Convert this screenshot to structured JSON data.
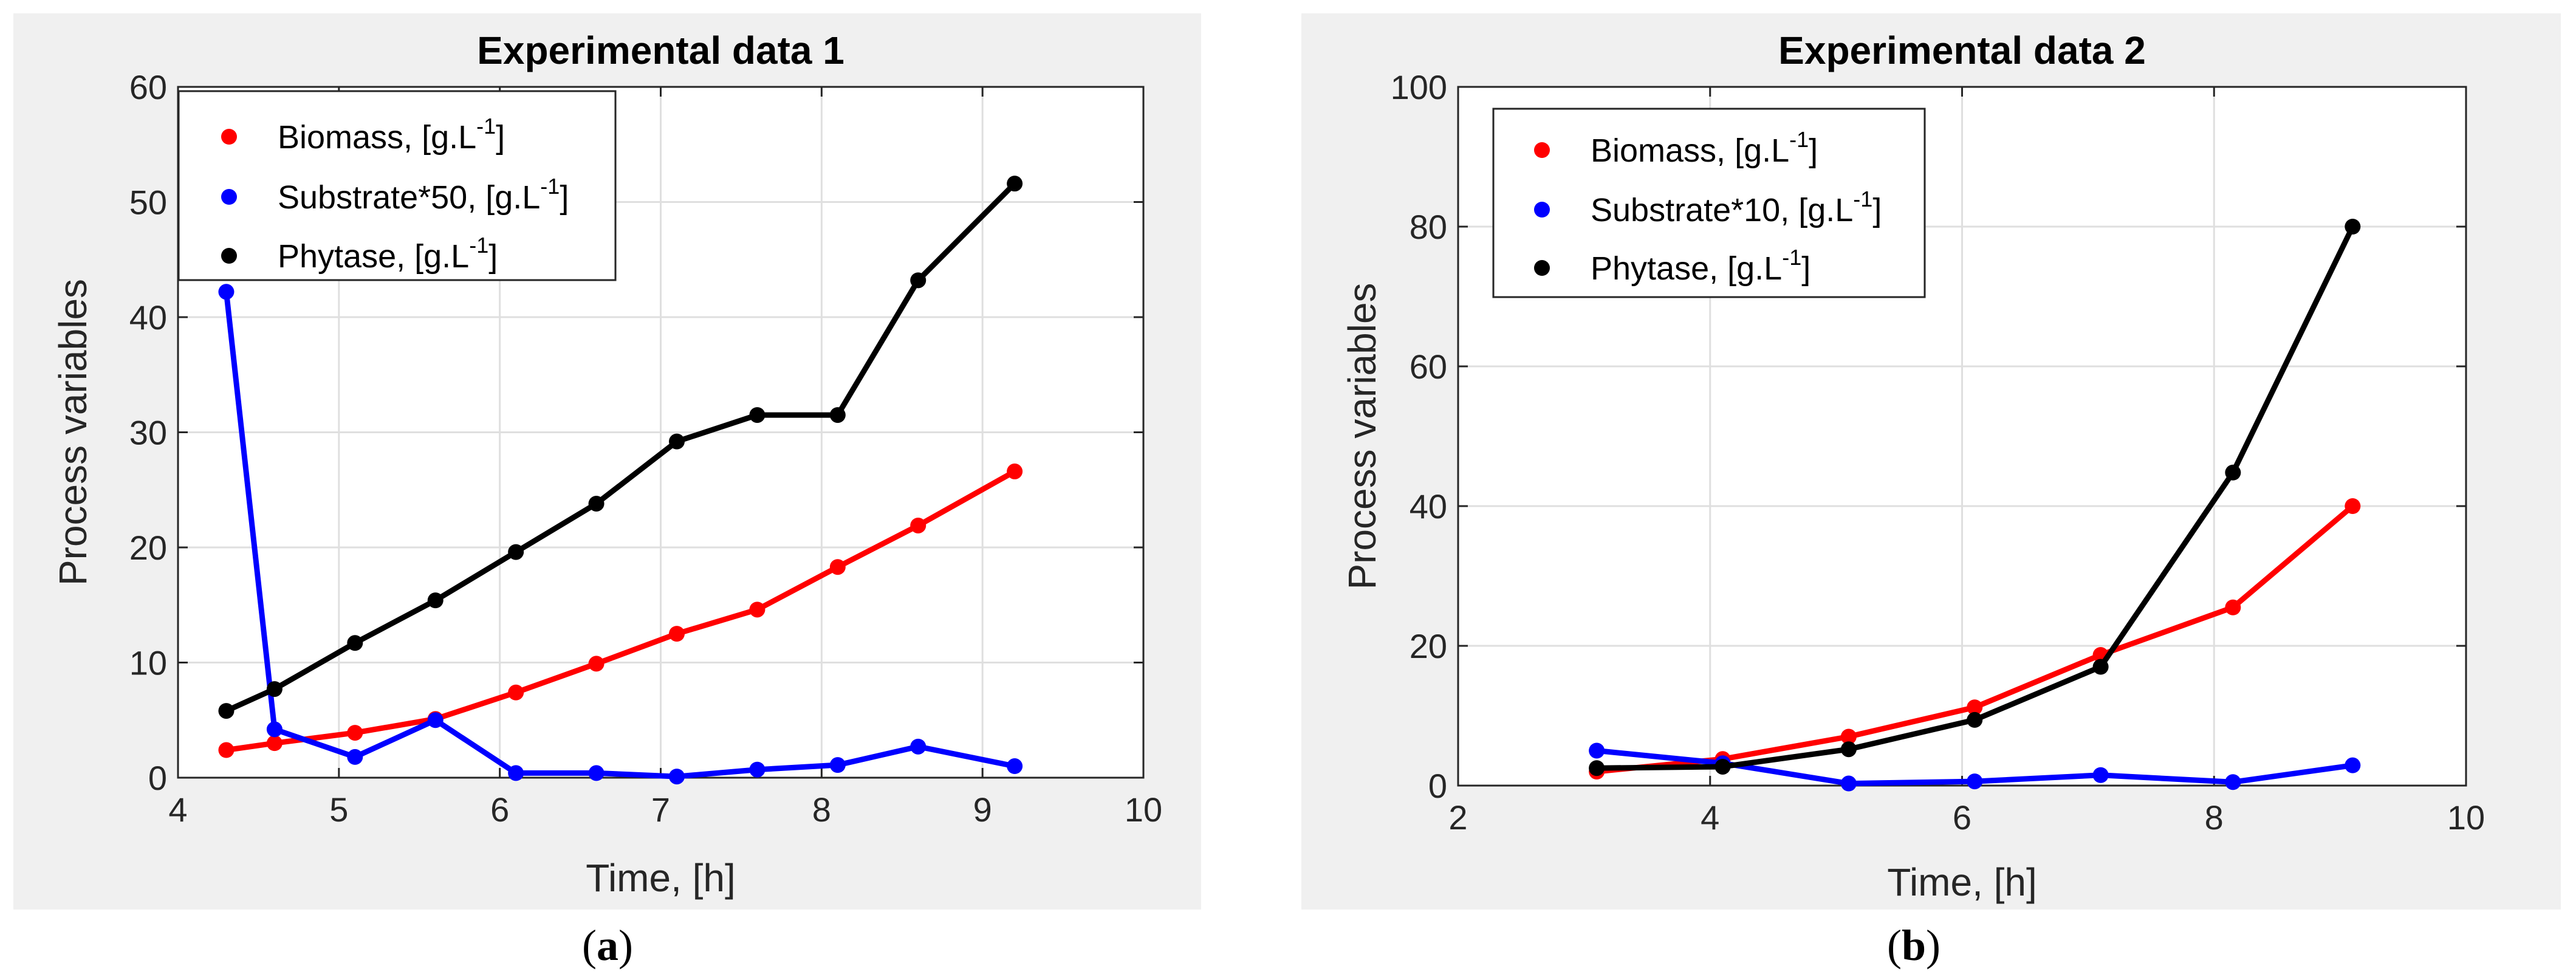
{
  "chart_data": [
    {
      "type": "line",
      "title": "Experimental data 1",
      "xlabel": "Time, [h]",
      "ylabel": "Process variables",
      "xlim": [
        4,
        10
      ],
      "ylim": [
        0,
        60
      ],
      "xticks": [
        4,
        5,
        6,
        7,
        8,
        9,
        10
      ],
      "yticks": [
        0,
        10,
        20,
        30,
        40,
        50,
        60
      ],
      "grid": true,
      "legend_position": "top-left",
      "series": [
        {
          "name": "Biomass, [g.L",
          "sup": "-1",
          "close": "]",
          "color": "#ff0000",
          "x": [
            4.3,
            4.6,
            5.1,
            5.6,
            6.1,
            6.6,
            7.1,
            7.6,
            8.1,
            8.6,
            9.2
          ],
          "y": [
            2.4,
            3.0,
            3.9,
            5.1,
            7.4,
            9.9,
            12.5,
            14.6,
            18.3,
            21.9,
            26.6
          ]
        },
        {
          "name": "Substrate*50, [g.L",
          "sup": "-1",
          "close": "]",
          "color": "#0000ff",
          "x": [
            4.3,
            4.6,
            5.1,
            5.6,
            6.1,
            6.6,
            7.1,
            7.6,
            8.1,
            8.6,
            9.2
          ],
          "y": [
            42.2,
            4.2,
            1.8,
            5.0,
            0.4,
            0.4,
            0.1,
            0.7,
            1.1,
            2.7,
            1.0
          ]
        },
        {
          "name": "Phytase, [g.L",
          "sup": "-1",
          "close": "]",
          "color": "#000000",
          "x": [
            4.3,
            4.6,
            5.1,
            5.6,
            6.1,
            6.6,
            7.1,
            7.6,
            8.1,
            8.6,
            9.2
          ],
          "y": [
            5.8,
            7.7,
            11.7,
            15.4,
            19.6,
            23.8,
            29.2,
            31.5,
            31.5,
            43.2,
            51.6
          ]
        }
      ]
    },
    {
      "type": "line",
      "title": "Experimental data 2",
      "xlabel": "Time, [h]",
      "ylabel": "Process variables",
      "xlim": [
        2,
        10
      ],
      "ylim": [
        0,
        100
      ],
      "xticks": [
        2,
        4,
        6,
        8,
        10
      ],
      "yticks": [
        0,
        20,
        40,
        60,
        80,
        100
      ],
      "grid": true,
      "legend_position": "top-left",
      "series": [
        {
          "name": "Biomass, [g.L",
          "sup": "-1",
          "close": "]",
          "color": "#ff0000",
          "x": [
            3.1,
            4.1,
            5.1,
            6.1,
            7.1,
            8.15,
            9.1
          ],
          "y": [
            2.0,
            3.8,
            7.0,
            11.2,
            18.7,
            25.5,
            40.0
          ]
        },
        {
          "name": "Substrate*10, [g.L",
          "sup": "-1",
          "close": "]",
          "color": "#0000ff",
          "x": [
            3.1,
            4.1,
            5.1,
            6.1,
            7.1,
            8.15,
            9.1
          ],
          "y": [
            5.0,
            3.2,
            0.3,
            0.6,
            1.5,
            0.5,
            2.9
          ]
        },
        {
          "name": "Phytase, [g.L",
          "sup": "-1",
          "close": "]",
          "color": "#000000",
          "x": [
            3.1,
            4.1,
            5.1,
            6.1,
            7.1,
            8.15,
            9.1
          ],
          "y": [
            2.5,
            2.7,
            5.2,
            9.4,
            17.0,
            44.8,
            80.0
          ]
        }
      ]
    }
  ],
  "captions": {
    "a": {
      "open": "(",
      "label": "a",
      "close": ")"
    },
    "b": {
      "open": "(",
      "label": "b",
      "close": ")"
    }
  }
}
